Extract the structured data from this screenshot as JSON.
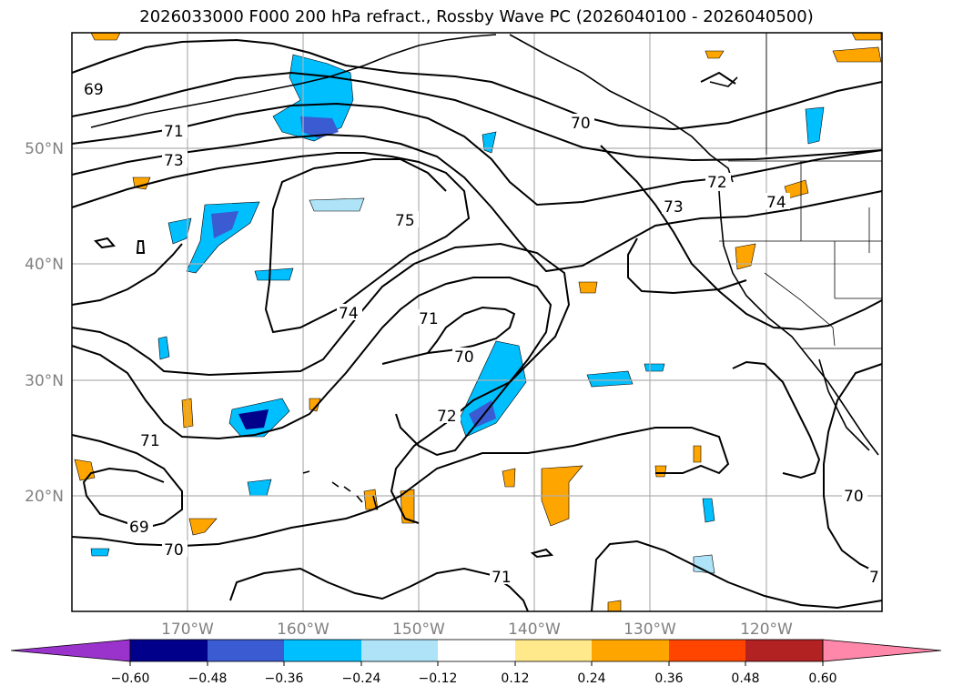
{
  "title": "2026033000 F000 200 hPa refract., Rossby Wave PC (2026040100 - 2026040500)",
  "map": {
    "lon_ticks": [
      "170°W",
      "160°W",
      "150°W",
      "140°W",
      "130°W",
      "120°W"
    ],
    "lat_ticks": [
      "50°N",
      "40°N",
      "30°N",
      "20°N"
    ],
    "contour_labels": [
      "69",
      "71",
      "73",
      "70",
      "72",
      "74",
      "75",
      "73",
      "74",
      "71",
      "70",
      "72",
      "71",
      "69",
      "70",
      "71",
      "70",
      "7"
    ],
    "colorbar": {
      "ticks": [
        "−0.60",
        "−0.48",
        "−0.36",
        "−0.24",
        "−0.12",
        "0.12",
        "0.24",
        "0.36",
        "0.48",
        "0.60"
      ],
      "colors": [
        "#9933cc",
        "#00008b",
        "#3a5bd1",
        "#00bfff",
        "#aee3f8",
        "#ffffff",
        "#ffe98a",
        "#ffa500",
        "#ff4500",
        "#b22222",
        "#ff88aa"
      ]
    }
  }
}
